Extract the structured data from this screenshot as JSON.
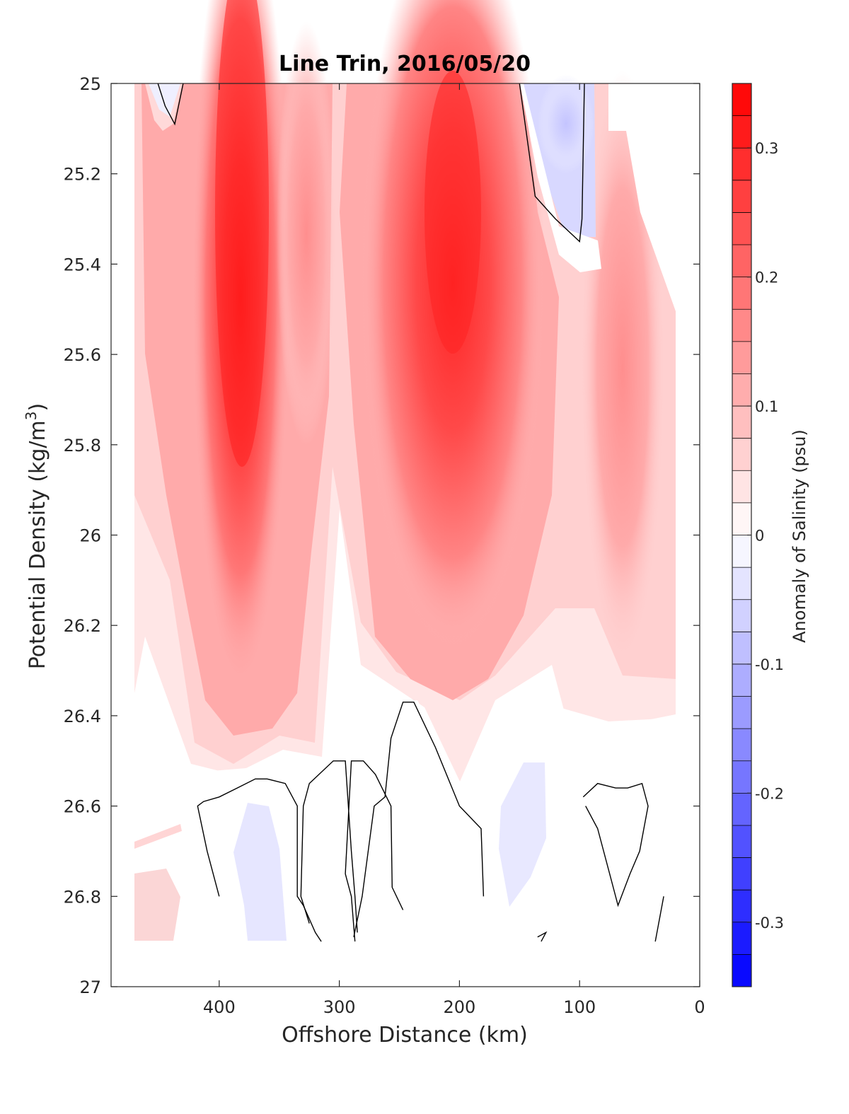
{
  "chart_data": {
    "type": "heatmap",
    "subtype": "filled-contour",
    "title": "Line Trin, 2016/05/20",
    "xlabel": "Offshore Distance (km)",
    "ylabel_main": "Potential Density (kg/m",
    "ylabel_sup": "3",
    "ylabel_close": ")",
    "colorbar_label": "Anomaly of Salinity (psu)",
    "xlim": [
      490,
      0
    ],
    "x_reversed": true,
    "ylim": [
      25,
      27
    ],
    "y_reversed": true,
    "xticks": [
      400,
      300,
      200,
      100,
      0
    ],
    "xtick_labels": [
      "400",
      "300",
      "200",
      "100",
      "0"
    ],
    "yticks": [
      25,
      25.2,
      25.4,
      25.6,
      25.8,
      26,
      26.2,
      26.4,
      26.6,
      26.8,
      27
    ],
    "ytick_labels": [
      "25",
      "25.2",
      "25.4",
      "25.6",
      "25.8",
      "26",
      "26.2",
      "26.4",
      "26.6",
      "26.8",
      "27"
    ],
    "colorbar_range": [
      -0.35,
      0.35
    ],
    "colorbar_step": 0.025,
    "colorbar_ticks": [
      0.3,
      0.2,
      0.1,
      0,
      -0.1,
      -0.2,
      -0.3
    ],
    "colorbar_tick_labels": [
      "0.3",
      "0.2",
      "0.1",
      "0",
      "-0.1",
      "-0.2",
      "-0.3"
    ],
    "colormap": "blue-white-red diverging",
    "colors": {
      "max": "#ff0000",
      "zero": "#ffffff",
      "min": "#0000ff"
    },
    "data_extent_x": [
      470,
      20
    ],
    "data_extent_y": [
      25,
      26.9
    ],
    "features": [
      {
        "name": "salinity maximum near 380 km",
        "x": 380,
        "y_top": 25.0,
        "y_bottom": 26.3,
        "peak_anomaly": 0.32
      },
      {
        "name": "salinity maximum near 210 km",
        "x": 210,
        "y_top": 25.0,
        "y_bottom": 26.3,
        "peak_anomaly": 0.3
      },
      {
        "name": "high-salinity band near 70 km",
        "x": 70,
        "y_top": 25.1,
        "y_bottom": 26.2,
        "peak_anomaly": 0.15
      },
      {
        "name": "fresh anomaly near 120 km",
        "x": 120,
        "y_top": 25.0,
        "y_bottom": 25.3,
        "peak_anomaly": -0.05
      },
      {
        "name": "fresh anomaly near 455 km",
        "x": 455,
        "y_top": 25.0,
        "y_bottom": 25.05,
        "peak_anomaly": -0.03
      },
      {
        "name": "fresh anomaly near 365 km",
        "x": 365,
        "y_top": 26.6,
        "y_bottom": 26.9,
        "peak_anomaly": -0.03
      },
      {
        "name": "fresh anomaly near 140 km",
        "x": 140,
        "y_top": 26.5,
        "y_bottom": 26.8,
        "peak_anomaly": -0.03
      }
    ],
    "zero_contours": [
      [
        [
          451,
          25.0
        ],
        [
          445,
          25.05
        ],
        [
          437,
          25.09
        ],
        [
          430,
          25.0
        ]
      ],
      [
        [
          150,
          25.0
        ],
        [
          137,
          25.25
        ],
        [
          120,
          25.3
        ],
        [
          100,
          25.35
        ],
        [
          98,
          25.3
        ],
        [
          96,
          25.0
        ]
      ],
      [
        [
          400,
          26.8
        ],
        [
          410,
          26.7
        ],
        [
          418,
          26.6
        ],
        [
          413,
          26.59
        ],
        [
          400,
          26.58
        ],
        [
          385,
          26.56
        ],
        [
          370,
          26.54
        ],
        [
          360,
          26.54
        ],
        [
          345,
          26.55
        ],
        [
          335,
          26.6
        ],
        [
          335,
          26.8
        ],
        [
          330,
          26.82
        ],
        [
          320,
          26.88
        ],
        [
          315,
          26.9
        ]
      ],
      [
        [
          285,
          26.88
        ],
        [
          287,
          26.8
        ],
        [
          290,
          26.7
        ],
        [
          295,
          26.5
        ],
        [
          305,
          26.5
        ],
        [
          325,
          26.55
        ],
        [
          330,
          26.6
        ],
        [
          332,
          26.8
        ],
        [
          325,
          26.86
        ]
      ],
      [
        [
          287,
          26.9
        ],
        [
          290,
          26.8
        ],
        [
          295,
          26.75
        ],
        [
          290,
          26.5
        ],
        [
          280,
          26.5
        ],
        [
          270,
          26.53
        ],
        [
          257,
          26.6
        ],
        [
          256,
          26.78
        ],
        [
          247,
          26.83
        ]
      ],
      [
        [
          180,
          26.8
        ],
        [
          182,
          26.65
        ],
        [
          200,
          26.6
        ],
        [
          220,
          26.47
        ],
        [
          238,
          26.37
        ],
        [
          247,
          26.37
        ],
        [
          257,
          26.45
        ],
        [
          262,
          26.58
        ],
        [
          271,
          26.6
        ],
        [
          281,
          26.8
        ],
        [
          288,
          26.89
        ]
      ],
      [
        [
          135,
          26.89
        ],
        [
          128,
          26.88
        ],
        [
          132,
          26.9
        ]
      ],
      [
        [
          97,
          26.58
        ],
        [
          85,
          26.55
        ],
        [
          70,
          26.56
        ],
        [
          60,
          26.56
        ],
        [
          48,
          26.55
        ],
        [
          43,
          26.6
        ],
        [
          50,
          26.7
        ],
        [
          58,
          26.75
        ],
        [
          68,
          26.82
        ],
        [
          75,
          26.75
        ],
        [
          85,
          26.65
        ],
        [
          95,
          26.6
        ]
      ],
      [
        [
          37,
          26.9
        ],
        [
          30,
          26.8
        ]
      ]
    ]
  }
}
